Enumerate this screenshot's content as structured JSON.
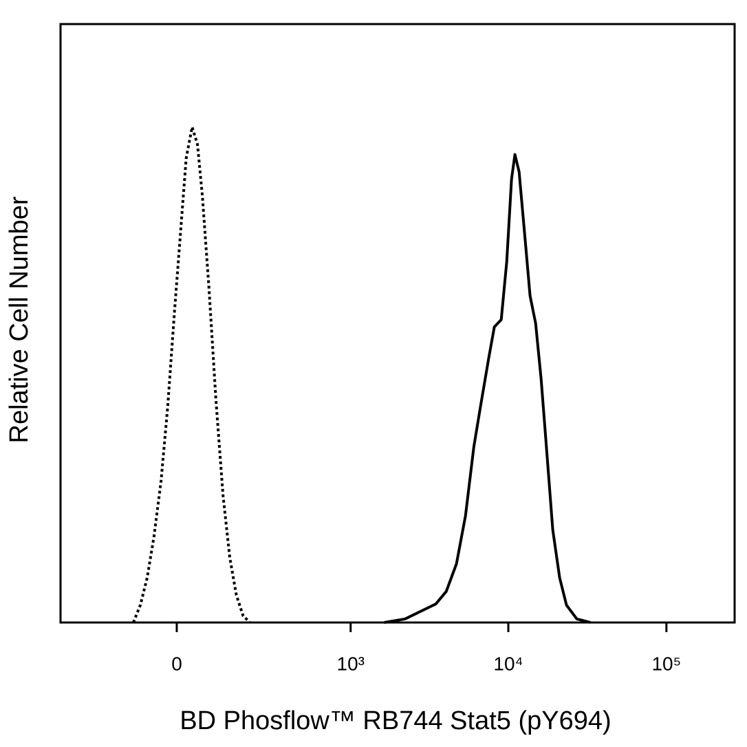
{
  "chart_data": {
    "type": "line",
    "x_label": "BD Phosflow™  RB744  Stat5 (pY694)",
    "y_label": "Relative Cell Number",
    "xscale": "biexponential",
    "xlim": [
      -420,
      270000
    ],
    "ylim": [
      0,
      100
    ],
    "xticks": [
      0,
      {
        "value": 1000,
        "label": "10³"
      },
      {
        "value": 10000,
        "label": "10⁴"
      },
      {
        "value": 100000,
        "label": "10⁵"
      }
    ],
    "series": [
      {
        "color": "#000000",
        "style": "dotted",
        "x": [
          -108,
          -89,
          -71,
          -54,
          -37,
          -21,
          -5,
          11,
          22,
          36,
          49,
          61,
          78,
          96,
          116,
          136,
          157,
          180,
          205
        ],
        "values": [
          0,
          2.9,
          7.5,
          14.4,
          23.6,
          36.2,
          52.3,
          67.2,
          77.6,
          82.8,
          79.9,
          71.3,
          55.7,
          37.4,
          21.3,
          10.9,
          4.6,
          1.1,
          0
        ]
      },
      {
        "color": "#000000",
        "style": "solid",
        "x": [
          1640,
          2220,
          2710,
          3480,
          4050,
          4700,
          5360,
          6050,
          6680,
          7530,
          8160,
          9020,
          9770,
          10480,
          11010,
          11700,
          12800,
          13730,
          14880,
          16120,
          17290,
          19110,
          21120,
          23340,
          27120,
          33130
        ],
        "values": [
          0,
          0.6,
          1.7,
          3.1,
          5.2,
          9.8,
          17.8,
          29.3,
          36.2,
          44.3,
          49.4,
          50.6,
          60.3,
          74.1,
          78.2,
          75.3,
          63.8,
          54.6,
          50.0,
          40.8,
          30.5,
          15.5,
          7.5,
          2.9,
          0.6,
          0
        ]
      }
    ]
  }
}
